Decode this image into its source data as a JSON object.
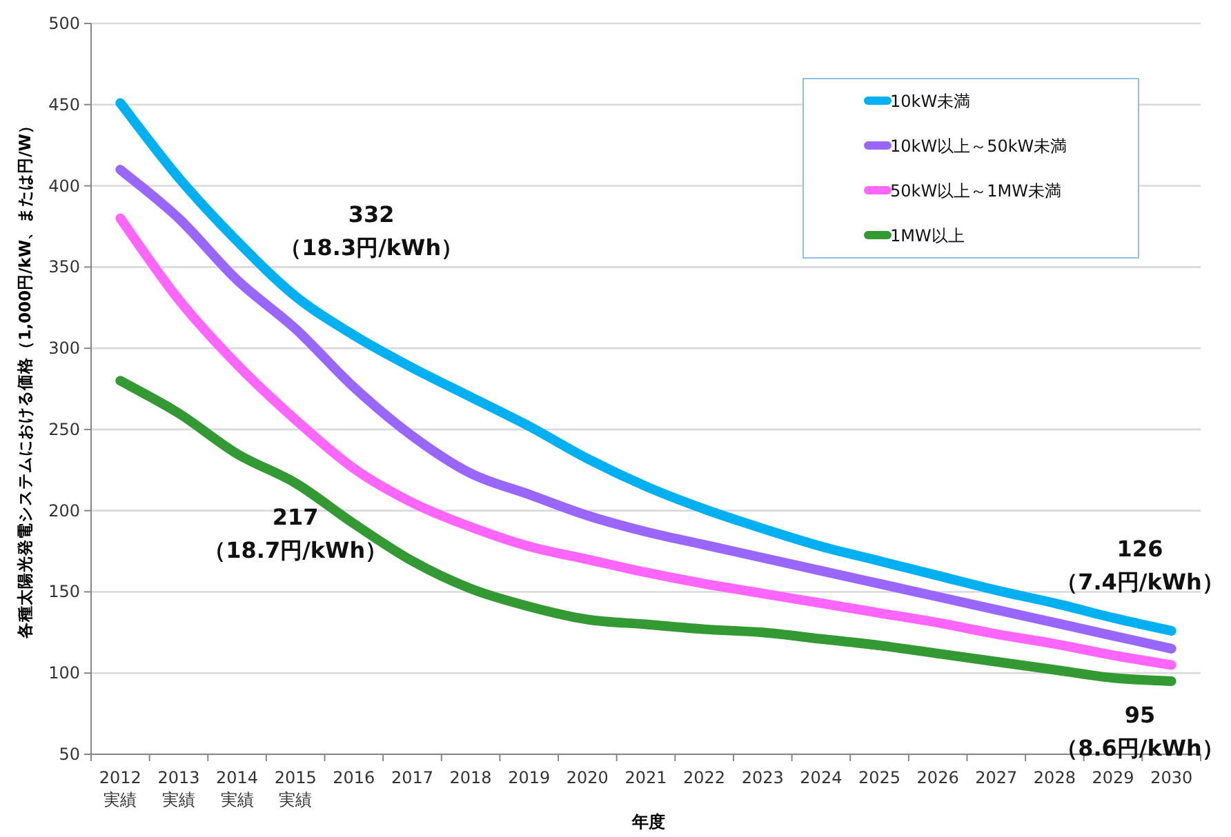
{
  "chart_data": {
    "type": "line",
    "xlabel": "年度",
    "ylabel": "各種太陽光発電システムにおける価格（1,000円/kW、または円/W）",
    "categories": [
      "2012\n実績",
      "2013\n実績",
      "2014\n実績",
      "2015\n実績",
      "2016",
      "2017",
      "2018",
      "2019",
      "2020",
      "2021",
      "2022",
      "2023",
      "2024",
      "2025",
      "2026",
      "2027",
      "2028",
      "2029",
      "2030"
    ],
    "series": [
      {
        "name": "10kW未満",
        "color": "#00b0f0",
        "values": [
          451,
          405,
          366,
          332,
          308,
          288,
          270,
          252,
          232,
          215,
          201,
          189,
          178,
          169,
          160,
          151,
          143,
          134,
          126
        ]
      },
      {
        "name": "10kW以上～50kW未満",
        "color": "#9966ff",
        "values": [
          410,
          380,
          342,
          312,
          276,
          246,
          223,
          210,
          197,
          187,
          179,
          171,
          163,
          155,
          147,
          139,
          131,
          123,
          115
        ]
      },
      {
        "name": "50kW以上～1MW未満",
        "color": "#ff66ff",
        "values": [
          380,
          330,
          290,
          256,
          226,
          205,
          190,
          178,
          170,
          162,
          155,
          149,
          143,
          137,
          131,
          124,
          118,
          111,
          105
        ]
      },
      {
        "name": "1MW以上",
        "color": "#339933",
        "values": [
          280,
          260,
          235,
          217,
          192,
          169,
          152,
          141,
          133,
          130,
          127,
          125,
          121,
          117,
          112,
          107,
          102,
          97,
          95
        ]
      }
    ],
    "ylim": [
      50,
      500
    ],
    "yticks": [
      50,
      100,
      150,
      200,
      250,
      300,
      350,
      400,
      450,
      500
    ],
    "grid": "y",
    "legend": "top right",
    "marker": "none",
    "line_style": "solid",
    "annotations": [
      {
        "text": "332\n（18.3円/kWh）",
        "x": "2015\n実績",
        "y": 332
      },
      {
        "text": "217\n（18.7円/kWh）",
        "x": "2015\n実績",
        "y": 217
      },
      {
        "text": "126\n（7.4円/kWh）",
        "x": "2030",
        "y": 126
      },
      {
        "text": "95\n（8.6円/kWh）",
        "x": "2030",
        "y": 95
      }
    ]
  }
}
